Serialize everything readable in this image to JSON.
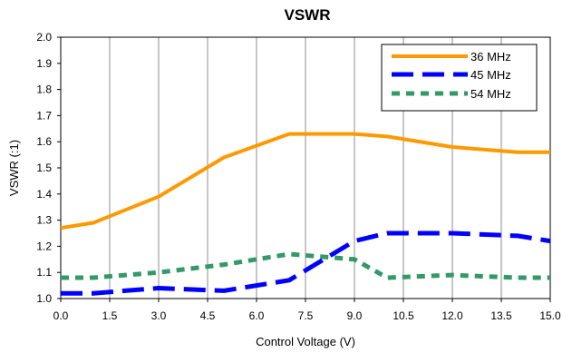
{
  "chart_data": {
    "type": "line",
    "title": "VSWR",
    "xlabel": "Control Voltage (V)",
    "ylabel": "VSWR (:1)",
    "xlim": [
      0,
      15
    ],
    "ylim": [
      1.0,
      2.0
    ],
    "x_ticks": [
      "0.0",
      "1.5",
      "3.0",
      "4.5",
      "6.0",
      "7.5",
      "9.0",
      "10.5",
      "12.0",
      "13.5",
      "15.0"
    ],
    "y_ticks": [
      "1.0",
      "1.1",
      "1.2",
      "1.3",
      "1.4",
      "1.5",
      "1.6",
      "1.7",
      "1.8",
      "1.9",
      "2.0"
    ],
    "grid": "vertical",
    "legend_position": "top-right",
    "series": [
      {
        "name": "36 MHz",
        "color": "#FF9900",
        "style": "solid",
        "x": [
          0,
          1,
          3,
          5,
          7,
          9,
          10,
          12,
          14,
          15
        ],
        "y": [
          1.27,
          1.29,
          1.39,
          1.54,
          1.63,
          1.63,
          1.62,
          1.58,
          1.56,
          1.56
        ]
      },
      {
        "name": "45 MHz",
        "color": "#0000FF",
        "style": "dashed",
        "x": [
          0,
          1,
          3,
          5,
          7,
          9,
          10,
          12,
          14,
          15
        ],
        "y": [
          1.02,
          1.02,
          1.04,
          1.03,
          1.07,
          1.22,
          1.25,
          1.25,
          1.24,
          1.22
        ]
      },
      {
        "name": "54 MHz",
        "color": "#339966",
        "style": "dotted",
        "x": [
          0,
          1,
          3,
          5,
          7,
          9,
          10,
          12,
          14,
          15
        ],
        "y": [
          1.08,
          1.08,
          1.1,
          1.13,
          1.17,
          1.15,
          1.08,
          1.09,
          1.08,
          1.08
        ]
      }
    ]
  }
}
